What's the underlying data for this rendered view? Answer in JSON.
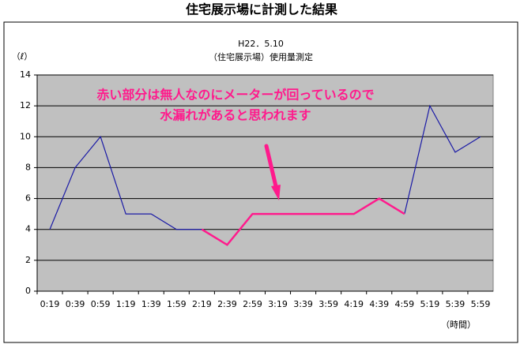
{
  "chart_data": {
    "type": "line",
    "title": "住宅展示場に計測した結果",
    "subtitle": [
      "H22．5.10",
      "（住宅展示場）使用量測定"
    ],
    "y_label": "（ℓ）",
    "x_label": "（時間）",
    "annotations": [
      "赤い部分は無人なのにメーターが回っているので",
      "水漏れがあると思われます"
    ],
    "categories": [
      "0:19",
      "0:39",
      "0:59",
      "1:19",
      "1:39",
      "1:59",
      "2:19",
      "2:39",
      "2:59",
      "3:19",
      "3:39",
      "3:59",
      "4:19",
      "4:39",
      "4:59",
      "5:19",
      "5:39",
      "5:59"
    ],
    "series": [
      {
        "color": "#1a1aa6",
        "values": [
          4,
          8,
          10,
          5,
          5,
          4,
          4,
          null,
          null,
          null,
          null,
          null,
          null,
          null,
          5,
          12,
          9,
          10
        ]
      },
      {
        "color": "#ff1a8c",
        "values": [
          null,
          null,
          null,
          null,
          null,
          null,
          4,
          3,
          5,
          5,
          5,
          5,
          5,
          6,
          5,
          null,
          null,
          null
        ]
      }
    ],
    "ylim": [
      0,
      14
    ],
    "yticks": [
      0,
      2,
      4,
      6,
      8,
      10,
      12,
      14
    ],
    "grid": true,
    "plot_background": "#c0c0c0"
  }
}
